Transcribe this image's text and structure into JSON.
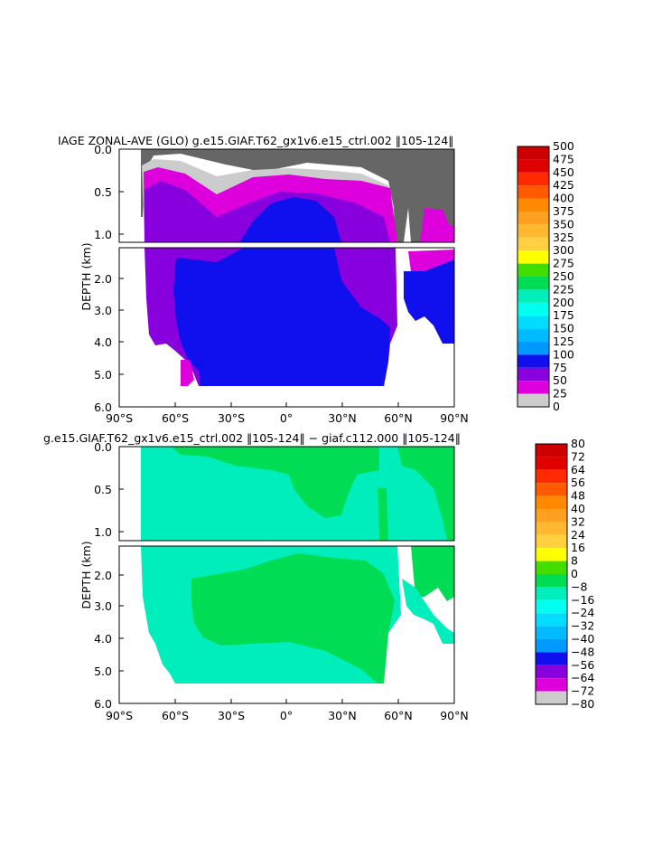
{
  "chart_data": [
    {
      "type": "heatmap",
      "title": "IAGE ZONAL-AVE (GLO) g.e15.GIAF.T62_gx1v6.e15_ctrl.002 ‖105-124‖",
      "ylabel": "DEPTH (km)",
      "x_ticks": [
        "90°S",
        "60°S",
        "30°S",
        "0°",
        "30°N",
        "60°N",
        "90°N"
      ],
      "y_ticks_upper": [
        "0.0",
        "0.5",
        "1.0"
      ],
      "y_ticks_lower": [
        "2.0",
        "3.0",
        "4.0",
        "5.0",
        "6.0"
      ],
      "xlim": [
        -90,
        90
      ],
      "ylim_km": [
        6.0,
        0.0
      ],
      "colorbar_labels": [
        "500",
        "475",
        "450",
        "425",
        "400",
        "375",
        "350",
        "325",
        "300",
        "275",
        "250",
        "225",
        "200",
        "175",
        "150",
        "125",
        "100",
        "75",
        "50",
        "25",
        "0"
      ],
      "colorbar_colors": [
        "#cc0000",
        "#e00000",
        "#ff2a00",
        "#ff5a00",
        "#ff8a00",
        "#ffa020",
        "#ffb830",
        "#ffd040",
        "#ffff00",
        "#44dd00",
        "#00dd55",
        "#00eebb",
        "#00ffee",
        "#00ddff",
        "#00bbff",
        "#0099ff",
        "#1010ee",
        "#8800dd",
        "#dd00dd",
        "#cccccc",
        "#666666"
      ]
    },
    {
      "type": "heatmap",
      "title": "g.e15.GIAF.T62_gx1v6.e15_ctrl.002 ‖105-124‖ − giaf.c112.000 ‖105-124‖",
      "ylabel": "DEPTH (km)",
      "x_ticks": [
        "90°S",
        "60°S",
        "30°S",
        "0°",
        "30°N",
        "60°N",
        "90°N"
      ],
      "y_ticks_upper": [
        "0.0",
        "0.5",
        "1.0"
      ],
      "y_ticks_lower": [
        "2.0",
        "3.0",
        "4.0",
        "5.0",
        "6.0"
      ],
      "xlim": [
        -90,
        90
      ],
      "ylim_km": [
        6.0,
        0.0
      ],
      "colorbar_labels": [
        "80",
        "72",
        "64",
        "56",
        "48",
        "40",
        "32",
        "24",
        "16",
        "8",
        "0",
        "−8",
        "−16",
        "−24",
        "−32",
        "−40",
        "−48",
        "−56",
        "−64",
        "−72",
        "−80"
      ],
      "colorbar_colors": [
        "#cc0000",
        "#e00000",
        "#ff2a00",
        "#ff5a00",
        "#ff8a00",
        "#ffa020",
        "#ffb830",
        "#ffd040",
        "#ffff00",
        "#44dd00",
        "#00dd55",
        "#00eebb",
        "#00ffee",
        "#00ddff",
        "#00bbff",
        "#0099ff",
        "#1010ee",
        "#8800dd",
        "#dd00dd",
        "#cccccc",
        "#666666"
      ]
    }
  ]
}
